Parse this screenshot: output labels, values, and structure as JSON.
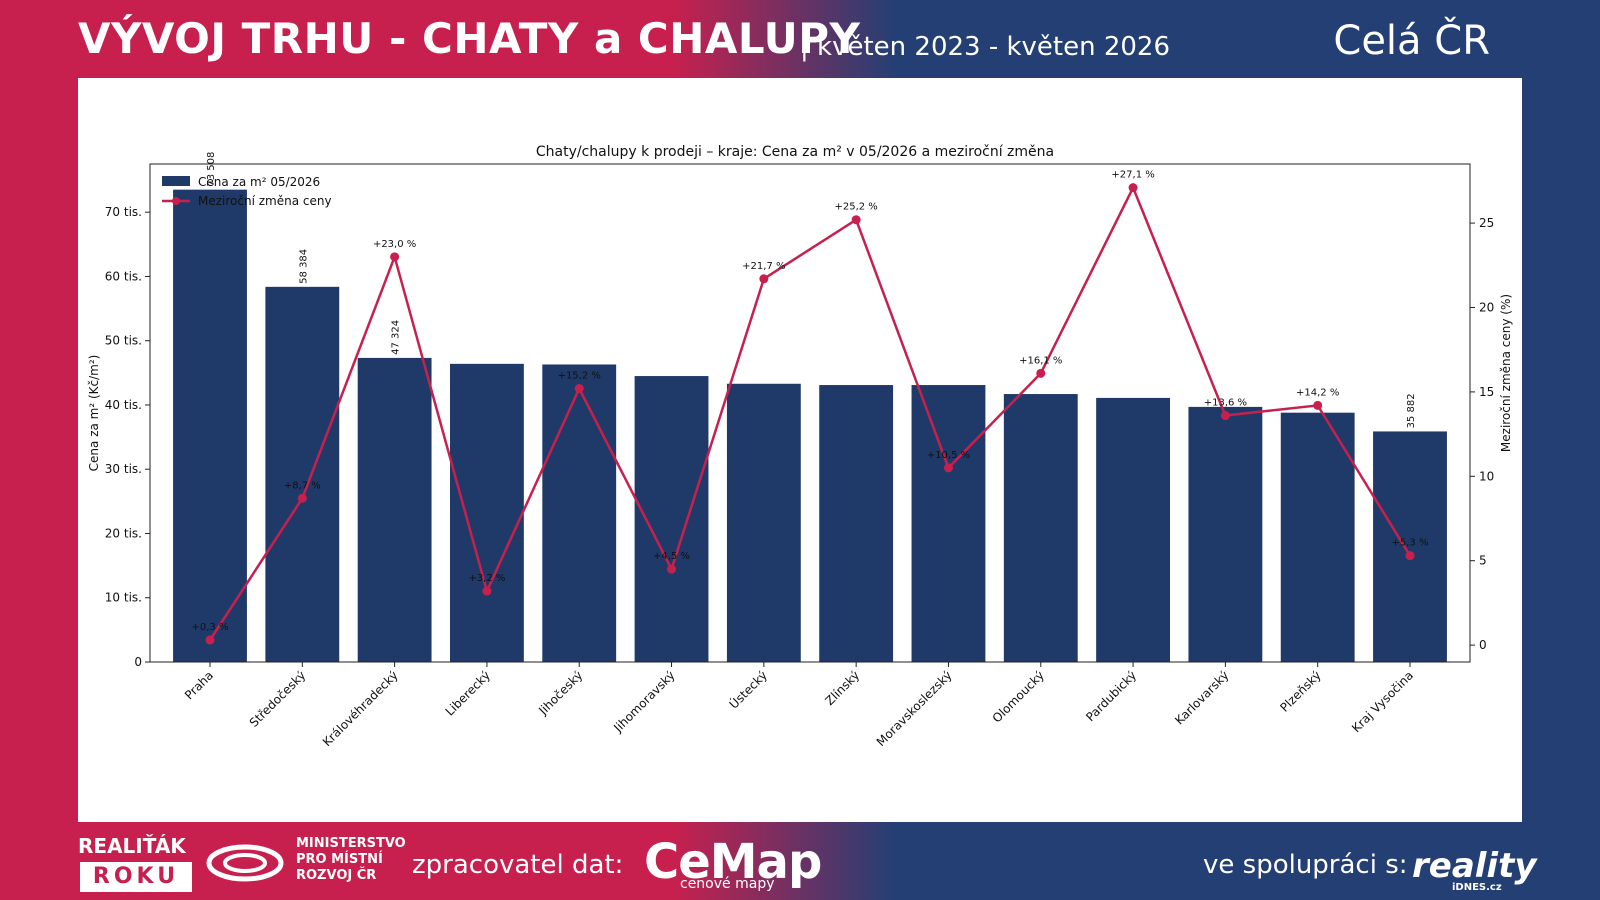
{
  "header": {
    "title": "VÝVOJ TRHU - CHATY a CHALUPY",
    "period": "| květen 2023 - květen 2026",
    "region": "Celá ČR"
  },
  "footer": {
    "award_line1": "REALIŤÁK",
    "award_line2": "ROKU",
    "ministry": "MINISTERSTVO PRO MÍSTNÍ ROZVOJ ČR",
    "processor_label": "zpracovatel dat:",
    "processor_logo": "CeMap",
    "processor_sub": "cenové mapy",
    "coop_label": "ve spolupráci s:",
    "coop_logo": "reality",
    "coop_sub": "iDNES.cz"
  },
  "colors": {
    "bar": "#1f3a68",
    "line": "#c8204e",
    "red_bg": "#c8204e",
    "blue_bg": "#243f74"
  },
  "chart_data": {
    "type": "bar",
    "title": "Chaty/chalupy k prodeji – kraje: Cena za m² v 05/2026 a meziroční změna",
    "ylabel": "Cena za m² (Kč/m²)",
    "y2label": "Meziroční změna ceny (%)",
    "ylim": [
      0,
      77500
    ],
    "y2lim": [
      -1,
      28.5
    ],
    "yticks": [
      0,
      10000,
      20000,
      30000,
      40000,
      50000,
      60000,
      70000
    ],
    "ytick_labels": [
      "0",
      "10 tis.",
      "20 tis.",
      "30 tis.",
      "40 tis.",
      "50 tis.",
      "60 tis.",
      "70 tis."
    ],
    "y2ticks": [
      0,
      5,
      10,
      15,
      20,
      25
    ],
    "y2tick_labels": [
      "0",
      "5",
      "10",
      "15",
      "20",
      "25"
    ],
    "legend_position": "top-left",
    "categories": [
      "Praha",
      "Středočeský",
      "Královéhradecký",
      "Liberecký",
      "Jihočeský",
      "Jihomoravský",
      "Ústecký",
      "Zlínský",
      "Moravskoslezský",
      "Olomoucký",
      "Pardubický",
      "Karlovarský",
      "Plzeňský",
      "Kraj Vysočina"
    ],
    "series": [
      {
        "name": "Cena za m² 05/2026",
        "type": "bar",
        "values": [
          73508,
          58384,
          47324,
          46400,
          46300,
          44500,
          43300,
          43100,
          43100,
          41700,
          41100,
          39700,
          38800,
          35882
        ],
        "labels": [
          "73 508",
          "58 384",
          "47 324",
          "",
          "",
          "",
          "",
          "",
          "",
          "",
          "",
          "",
          "",
          "35 882"
        ]
      },
      {
        "name": "Meziroční změna ceny",
        "type": "line",
        "values": [
          0.3,
          8.7,
          23.0,
          3.2,
          15.2,
          4.5,
          21.7,
          25.2,
          10.5,
          16.1,
          27.1,
          13.6,
          14.2,
          5.3
        ],
        "labels": [
          "+0,3 %",
          "+8,7 %",
          "+23,0 %",
          "+3,2 %",
          "+15,2 %",
          "+4,5 %",
          "+21,7 %",
          "+25,2 %",
          "+10,5 %",
          "+16,1 %",
          "+27,1 %",
          "+13,6 %",
          "+14,2 %",
          "+5,3 %"
        ]
      }
    ]
  }
}
